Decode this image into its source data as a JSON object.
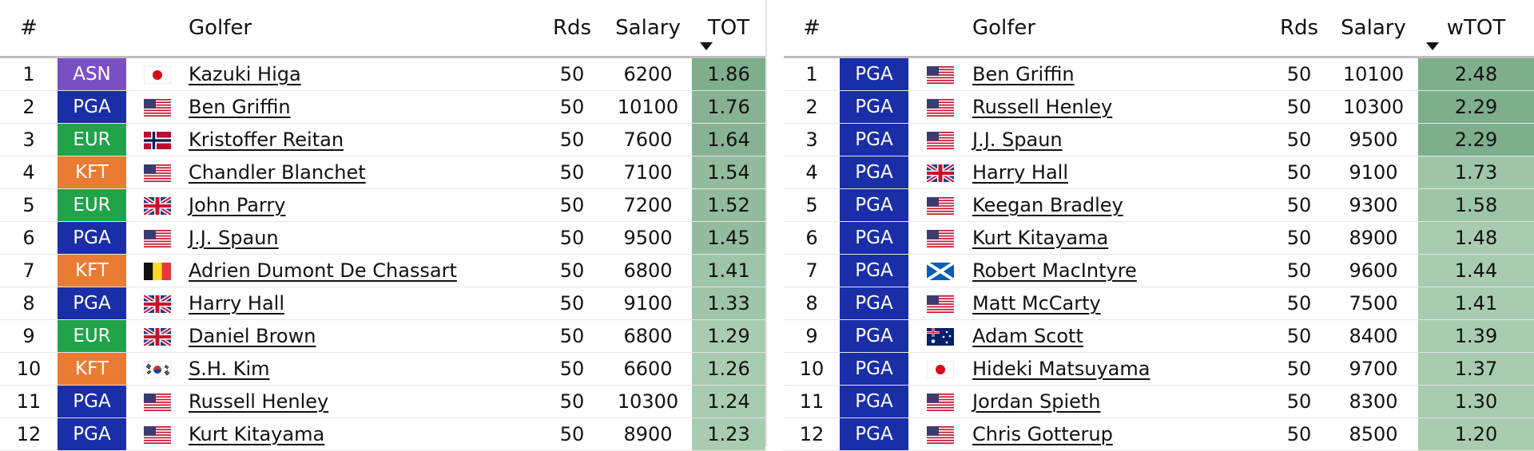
{
  "colors": {
    "ASN": "#7b4fc4",
    "PGA": "#1a2ea8",
    "EUR": "#21a34a",
    "KFT": "#ea7b33",
    "score_bg": [
      "#7eae8c",
      "#87b394",
      "#93bc9e",
      "#9fc5a8",
      "#a9ccb1"
    ]
  },
  "left": {
    "headers": {
      "num": "#",
      "golfer": "Golfer",
      "rds": "Rds",
      "salary": "Salary",
      "score": "TOT"
    },
    "rows": [
      {
        "num": "1",
        "tour": "ASN",
        "flag": "jp-flag-icon",
        "name": "Kazuki Higa",
        "rds": "50",
        "salary": "6200",
        "score": "1.86",
        "shade": 0
      },
      {
        "num": "2",
        "tour": "PGA",
        "flag": "us-flag-icon",
        "name": "Ben Griffin",
        "rds": "50",
        "salary": "10100",
        "score": "1.76",
        "shade": 1
      },
      {
        "num": "3",
        "tour": "EUR",
        "flag": "no-flag-icon",
        "name": "Kristoffer Reitan",
        "rds": "50",
        "salary": "7600",
        "score": "1.64",
        "shade": 1
      },
      {
        "num": "4",
        "tour": "KFT",
        "flag": "us-flag-icon",
        "name": "Chandler Blanchet",
        "rds": "50",
        "salary": "7100",
        "score": "1.54",
        "shade": 2
      },
      {
        "num": "5",
        "tour": "EUR",
        "flag": "gb-flag-icon",
        "name": "John Parry",
        "rds": "50",
        "salary": "7200",
        "score": "1.52",
        "shade": 2
      },
      {
        "num": "6",
        "tour": "PGA",
        "flag": "us-flag-icon",
        "name": "J.J. Spaun",
        "rds": "50",
        "salary": "9500",
        "score": "1.45",
        "shade": 2
      },
      {
        "num": "7",
        "tour": "KFT",
        "flag": "be-flag-icon",
        "name": "Adrien Dumont De Chassart",
        "rds": "50",
        "salary": "6800",
        "score": "1.41",
        "shade": 3
      },
      {
        "num": "8",
        "tour": "PGA",
        "flag": "gb-flag-icon",
        "name": "Harry Hall",
        "rds": "50",
        "salary": "9100",
        "score": "1.33",
        "shade": 3
      },
      {
        "num": "9",
        "tour": "EUR",
        "flag": "gb-flag-icon",
        "name": "Daniel Brown",
        "rds": "50",
        "salary": "6800",
        "score": "1.29",
        "shade": 4
      },
      {
        "num": "10",
        "tour": "KFT",
        "flag": "kr-flag-icon",
        "name": "S.H. Kim",
        "rds": "50",
        "salary": "6600",
        "score": "1.26",
        "shade": 4
      },
      {
        "num": "11",
        "tour": "PGA",
        "flag": "us-flag-icon",
        "name": "Russell Henley",
        "rds": "50",
        "salary": "10300",
        "score": "1.24",
        "shade": 4
      },
      {
        "num": "12",
        "tour": "PGA",
        "flag": "us-flag-icon",
        "name": "Kurt Kitayama",
        "rds": "50",
        "salary": "8900",
        "score": "1.23",
        "shade": 4
      }
    ]
  },
  "right": {
    "headers": {
      "num": "#",
      "golfer": "Golfer",
      "rds": "Rds",
      "salary": "Salary",
      "score": "wTOT"
    },
    "rows": [
      {
        "num": "1",
        "tour": "PGA",
        "flag": "us-flag-icon",
        "name": "Ben Griffin",
        "rds": "50",
        "salary": "10100",
        "score": "2.48",
        "shade": 0
      },
      {
        "num": "2",
        "tour": "PGA",
        "flag": "us-flag-icon",
        "name": "Russell Henley",
        "rds": "50",
        "salary": "10300",
        "score": "2.29",
        "shade": 0
      },
      {
        "num": "3",
        "tour": "PGA",
        "flag": "us-flag-icon",
        "name": "J.J. Spaun",
        "rds": "50",
        "salary": "9500",
        "score": "2.29",
        "shade": 0
      },
      {
        "num": "4",
        "tour": "PGA",
        "flag": "gb-flag-icon",
        "name": "Harry Hall",
        "rds": "50",
        "salary": "9100",
        "score": "1.73",
        "shade": 3
      },
      {
        "num": "5",
        "tour": "PGA",
        "flag": "us-flag-icon",
        "name": "Keegan Bradley",
        "rds": "50",
        "salary": "9300",
        "score": "1.58",
        "shade": 3
      },
      {
        "num": "6",
        "tour": "PGA",
        "flag": "us-flag-icon",
        "name": "Kurt Kitayama",
        "rds": "50",
        "salary": "8900",
        "score": "1.48",
        "shade": 4
      },
      {
        "num": "7",
        "tour": "PGA",
        "flag": "sco-flag-icon",
        "name": "Robert MacIntyre",
        "rds": "50",
        "salary": "9600",
        "score": "1.44",
        "shade": 4
      },
      {
        "num": "8",
        "tour": "PGA",
        "flag": "us-flag-icon",
        "name": "Matt McCarty",
        "rds": "50",
        "salary": "7500",
        "score": "1.41",
        "shade": 4
      },
      {
        "num": "9",
        "tour": "PGA",
        "flag": "au-flag-icon",
        "name": "Adam Scott",
        "rds": "50",
        "salary": "8400",
        "score": "1.39",
        "shade": 4
      },
      {
        "num": "10",
        "tour": "PGA",
        "flag": "jp-flag-icon",
        "name": "Hideki Matsuyama",
        "rds": "50",
        "salary": "9700",
        "score": "1.37",
        "shade": 4
      },
      {
        "num": "11",
        "tour": "PGA",
        "flag": "us-flag-icon",
        "name": "Jordan Spieth",
        "rds": "50",
        "salary": "8300",
        "score": "1.30",
        "shade": 4
      },
      {
        "num": "12",
        "tour": "PGA",
        "flag": "us-flag-icon",
        "name": "Chris Gotterup",
        "rds": "50",
        "salary": "8500",
        "score": "1.20",
        "shade": 4
      }
    ]
  }
}
